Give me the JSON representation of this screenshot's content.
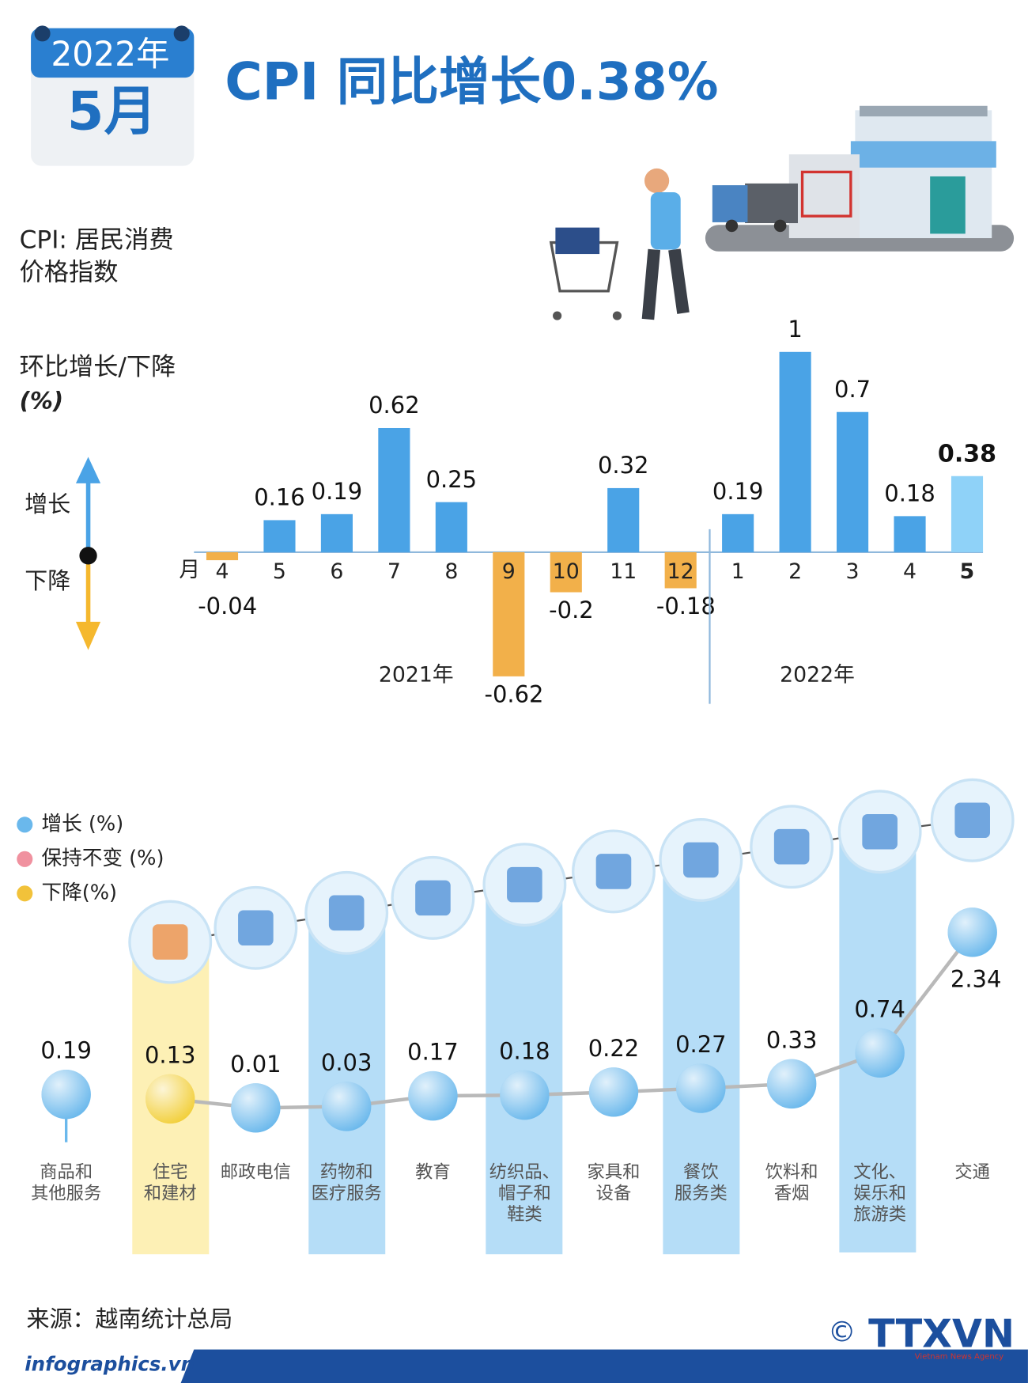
{
  "header": {
    "year": "2022年",
    "month": "5月",
    "title": "CPI 同比增长0.38%"
  },
  "definition": [
    "CPI: 居民消费",
    "价格指数"
  ],
  "chart_data": [
    {
      "type": "bar",
      "y_label": [
        "环比增长/下降",
        "(%)"
      ],
      "direction_labels": {
        "up": "增长",
        "down": "下降"
      },
      "x_label": "月",
      "groups": [
        {
          "label": "2021年",
          "categories": [
            "4",
            "5",
            "6",
            "7",
            "8",
            "9",
            "10",
            "11",
            "12"
          ],
          "values": [
            -0.04,
            0.16,
            0.19,
            0.62,
            0.25,
            -0.62,
            -0.2,
            0.32,
            -0.18
          ]
        },
        {
          "label": "2022年",
          "categories": [
            "1",
            "2",
            "3",
            "4",
            "5"
          ],
          "values": [
            0.19,
            1,
            0.7,
            0.18,
            0.38
          ]
        }
      ],
      "ylim": [
        -0.7,
        1
      ],
      "color": "#4aa3e6",
      "negative_color": "#f2b04a",
      "highlight_color": "#8fd2f8"
    },
    {
      "type": "line",
      "categories": [
        [
          "商品和",
          "其他服务"
        ],
        [
          "住宅",
          "和建材"
        ],
        [
          "邮政电信"
        ],
        [
          "药物和",
          "医疗服务"
        ],
        [
          "教育"
        ],
        [
          "纺织品、",
          "帽子和",
          "鞋类"
        ],
        [
          "家具和",
          "设备"
        ],
        [
          "餐饮",
          "服务类"
        ],
        [
          "饮料和",
          "香烟"
        ],
        [
          "文化、",
          "娱乐和",
          "旅游类"
        ],
        [
          "交通"
        ]
      ],
      "values": [
        0.19,
        0.13,
        0.01,
        0.03,
        0.17,
        0.18,
        0.22,
        0.27,
        0.33,
        0.74,
        2.34
      ],
      "colors": [
        "#6ab8ec",
        "#f2cf3a",
        "#6ab8ec",
        "#6ab8ec",
        "#6ab8ec",
        "#6ab8ec",
        "#6ab8ec",
        "#6ab8ec",
        "#6ab8ec",
        "#6ab8ec",
        "#6ab8ec"
      ],
      "legend": [
        {
          "name": "增长 (%)",
          "color": "#6ab8ec"
        },
        {
          "name": "保持不变 (%)",
          "color": "#f0919f"
        },
        {
          "name": "下降(%)",
          "color": "#f2c23a"
        }
      ],
      "ylim": [
        0,
        2.34
      ]
    }
  ],
  "source": "来源：越南统计总局",
  "site": "infographics.vn",
  "copyright": "©",
  "logo": "TTXVN",
  "logo_sub": "Vietnam News Agency"
}
